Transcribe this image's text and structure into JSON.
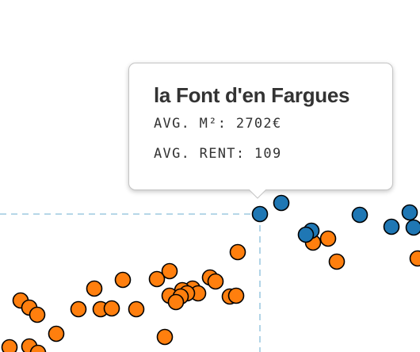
{
  "tooltip": {
    "title": "la Font d'en Fargues",
    "line_m2": "AVG. M²: 2702€",
    "line_rent": "AVG. RENT: 109"
  },
  "colors": {
    "orange": "#ff7f0e",
    "blue": "#1f77b4",
    "crosshair": "#9ecae1",
    "stroke": "#000000"
  },
  "chart_data": {
    "type": "scatter",
    "highlighted": {
      "name": "la Font d'en Fargues",
      "avg_m2": 2702,
      "avg_rent": 109
    },
    "series": [
      {
        "color": "orange",
        "points": [
          [
            300,
            318
          ],
          [
            214,
            342
          ],
          [
            198,
            352
          ],
          [
            155,
            353
          ],
          [
            119,
            364
          ],
          [
            265,
            350
          ],
          [
            272,
            355
          ],
          [
            243,
            364
          ],
          [
            230,
            366
          ],
          [
            250,
            370
          ],
          [
            236,
            370
          ],
          [
            214,
            373
          ],
          [
            290,
            374
          ],
          [
            298,
            373
          ],
          [
            228,
            374
          ],
          [
            222,
            381
          ],
          [
            26,
            379
          ],
          [
            37,
            388
          ],
          [
            47,
            397
          ],
          [
            99,
            390
          ],
          [
            127,
            390
          ],
          [
            141,
            389
          ],
          [
            172,
            390
          ],
          [
            71,
            421
          ],
          [
            208,
            425
          ],
          [
            12,
            438
          ],
          [
            37,
            437
          ],
          [
            48,
            445
          ],
          [
            395,
            306
          ],
          [
            414,
            301
          ],
          [
            425,
            330
          ],
          [
            527,
            326
          ]
        ]
      },
      {
        "color": "blue",
        "points": [
          [
            355,
            256
          ],
          [
            454,
            271
          ],
          [
            517,
            268
          ],
          [
            494,
            286
          ],
          [
            522,
            287
          ],
          [
            393,
            291
          ],
          [
            386,
            296
          ]
        ]
      }
    ],
    "highlight_point": [
      328,
      270
    ]
  }
}
